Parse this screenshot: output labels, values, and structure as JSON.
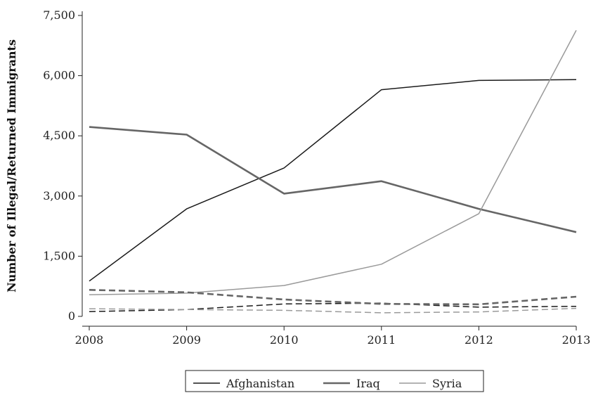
{
  "chart_data": {
    "type": "line",
    "title": "",
    "xlabel": "",
    "ylabel": "Number of Illegal/Returned Immigrants",
    "x": [
      "2008",
      "2009",
      "2010",
      "2011",
      "2012",
      "2013"
    ],
    "ylim": [
      0,
      7500
    ],
    "yticks": [
      0,
      1500,
      3000,
      4500,
      6000,
      7500
    ],
    "ytick_labels": [
      "0",
      "1,500",
      "3,000",
      "4,500",
      "6,000",
      "7,500"
    ],
    "grid": false,
    "legend_position": "bottom",
    "series": [
      {
        "name": "Afghanistan",
        "style": "solid",
        "color": "#1a1a1a",
        "values": [
          880,
          2680,
          3700,
          5650,
          5880,
          5900
        ]
      },
      {
        "name": "Iraq",
        "style": "solid",
        "color": "#666666",
        "values": [
          4720,
          4530,
          3060,
          3370,
          2680,
          2100
        ]
      },
      {
        "name": "Syria",
        "style": "solid",
        "color": "#9a9a9a",
        "values": [
          540,
          580,
          770,
          1300,
          2560,
          7130
        ]
      },
      {
        "style": "dashed",
        "color": "#1a1a1a",
        "values": [
          120,
          170,
          310,
          330,
          230,
          250
        ]
      },
      {
        "style": "dashed",
        "color": "#666666",
        "values": [
          660,
          600,
          420,
          310,
          300,
          490
        ]
      },
      {
        "style": "dashed",
        "color": "#9a9a9a",
        "values": [
          190,
          170,
          150,
          90,
          110,
          200
        ]
      }
    ]
  }
}
